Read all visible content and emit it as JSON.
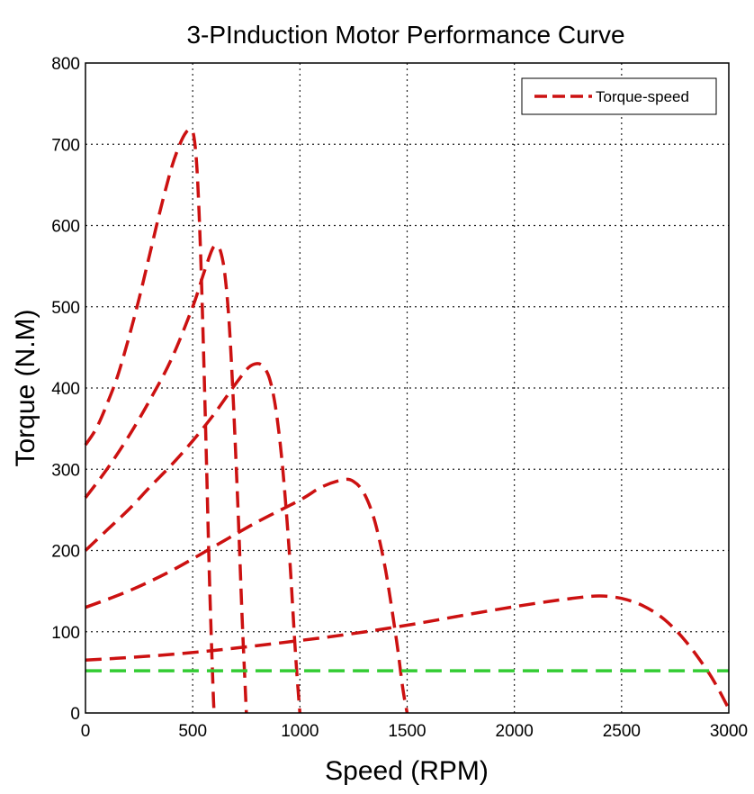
{
  "chart_data": {
    "type": "line",
    "title": "3-PInduction Motor Performance Curve",
    "xlabel": "Speed (RPM)",
    "ylabel": "Torque (N.M)",
    "xlim": [
      0,
      3000
    ],
    "ylim": [
      0,
      800
    ],
    "xticks": [
      0,
      500,
      1000,
      1500,
      2000,
      2500,
      3000
    ],
    "yticks": [
      0,
      100,
      200,
      300,
      400,
      500,
      600,
      700,
      800
    ],
    "grid": true,
    "legend": {
      "position": "top-right",
      "entries": [
        "Torque-speed"
      ]
    },
    "colors": {
      "curve": "#cc1111",
      "load": "#33cc33"
    },
    "series": [
      {
        "name": "Torque-speed",
        "color": "#cc1111",
        "x": [
          0,
          50,
          100,
          150,
          200,
          250,
          300,
          350,
          400,
          440,
          470,
          490,
          505,
          520,
          535,
          550,
          565,
          580,
          595,
          600
        ],
        "y": [
          330,
          350,
          380,
          415,
          460,
          510,
          565,
          620,
          670,
          700,
          715,
          718,
          710,
          670,
          580,
          450,
          300,
          150,
          30,
          0
        ]
      },
      {
        "color": "#cc1111",
        "x": [
          0,
          100,
          200,
          300,
          400,
          500,
          550,
          590,
          610,
          630,
          650,
          670,
          690,
          710,
          730,
          745,
          750
        ],
        "y": [
          265,
          300,
          340,
          385,
          435,
          500,
          540,
          570,
          575,
          568,
          540,
          480,
          380,
          260,
          120,
          30,
          0
        ]
      },
      {
        "color": "#cc1111",
        "x": [
          0,
          100,
          200,
          300,
          400,
          500,
          600,
          700,
          760,
          800,
          830,
          860,
          890,
          920,
          950,
          980,
          1000
        ],
        "y": [
          200,
          225,
          250,
          278,
          305,
          335,
          368,
          405,
          425,
          430,
          426,
          410,
          370,
          300,
          200,
          70,
          0
        ]
      },
      {
        "color": "#cc1111",
        "x": [
          0,
          200,
          400,
          600,
          800,
          1000,
          1100,
          1200,
          1250,
          1300,
          1350,
          1400,
          1450,
          1480,
          1500
        ],
        "y": [
          130,
          150,
          175,
          205,
          235,
          262,
          278,
          287,
          285,
          270,
          235,
          175,
          90,
          30,
          0
        ]
      },
      {
        "color": "#cc1111",
        "x": [
          0,
          300,
          600,
          900,
          1200,
          1500,
          1800,
          2100,
          2300,
          2400,
          2500,
          2600,
          2700,
          2800,
          2900,
          2950,
          3000
        ],
        "y": [
          65,
          70,
          77,
          86,
          96,
          108,
          122,
          135,
          142,
          144,
          141,
          132,
          115,
          88,
          52,
          30,
          5
        ]
      },
      {
        "color": "#33cc33",
        "x": [
          0,
          1500,
          3000
        ],
        "y": [
          52,
          52,
          52
        ]
      }
    ]
  }
}
